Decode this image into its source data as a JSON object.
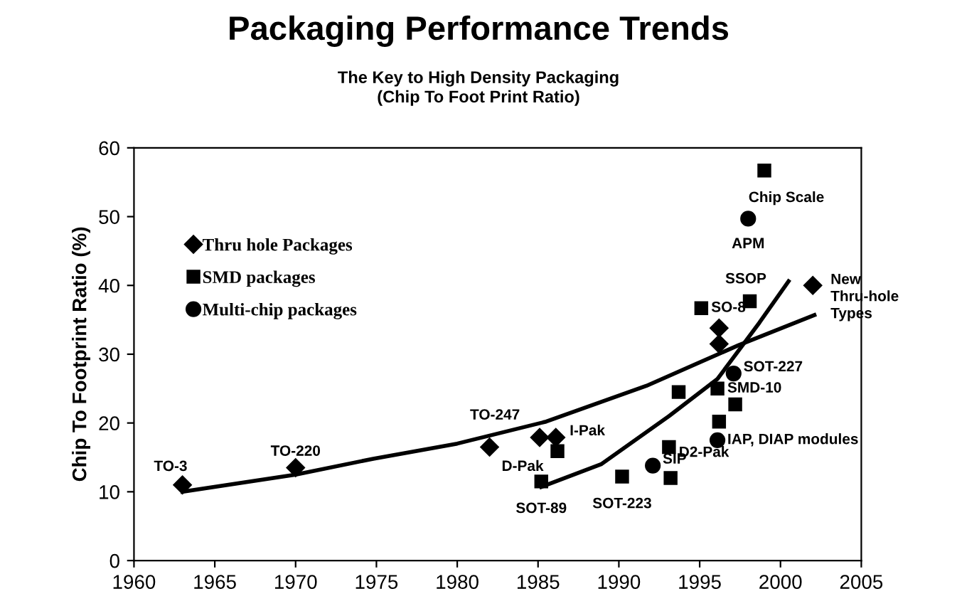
{
  "chart_data": {
    "type": "scatter",
    "title": "Packaging Performance Trends",
    "subtitle": "The Key to High Density Packaging\n(Chip To Foot Print Ratio)",
    "ylabel": "Chip To Footprint Ratio (%)",
    "series": [
      {
        "name": "Thru hole Packages",
        "marker": "diamond",
        "color": "#000000",
        "x": [
          1963,
          1970,
          1982,
          1985.1,
          1986.1,
          1996.2,
          1996.2,
          2002
        ],
        "values": [
          11,
          13.5,
          16.5,
          17.9,
          17.9,
          33.8,
          31.5,
          40
        ]
      },
      {
        "name": "SMD packages",
        "marker": "square",
        "color": "#000000",
        "x": [
          1999,
          1998.1,
          1995.1,
          1993.7,
          1996.1,
          1997.2,
          1996.2,
          1986.2,
          1985.2,
          1990.2,
          1993.1,
          1993.2
        ],
        "values": [
          56.7,
          37.7,
          36.7,
          24.5,
          25,
          22.7,
          20.2,
          15.9,
          11.5,
          12.2,
          16.5,
          12
        ]
      },
      {
        "name": "Multi-chip packages",
        "marker": "circle",
        "color": "#000000",
        "x": [
          1998,
          1997.1,
          1996.1,
          1992.1
        ],
        "values": [
          49.7,
          27.2,
          17.5,
          13.8
        ]
      },
      {
        "type": "line",
        "color": "#000000",
        "x": [
          1963,
          1970,
          1974.8,
          1980,
          1985.5,
          1991.7,
          1997.4,
          2002.1
        ],
        "values": [
          10,
          12.5,
          14.8,
          17,
          20.2,
          25.4,
          31.3,
          35.7
        ]
      },
      {
        "type": "line",
        "color": "#000000",
        "x": [
          1985.2,
          1988.9,
          1993.1,
          1996.1,
          1998.7,
          2000.5
        ],
        "values": [
          10.7,
          14,
          21,
          26.4,
          34.6,
          40.6
        ]
      }
    ],
    "annotations": [
      {
        "text": "TO-3",
        "x": 1963,
        "y": 11
      },
      {
        "text": "TO-220",
        "x": 1970,
        "y": 13.5
      },
      {
        "text": "TO-247",
        "x": 1985.1,
        "y": 17.9
      },
      {
        "text": "I-Pak",
        "x": 1986.1,
        "y": 17.9
      },
      {
        "text": "D-Pak",
        "x": 1986.2,
        "y": 15.9
      },
      {
        "text": "SOT-89",
        "x": 1985.2,
        "y": 11.5
      },
      {
        "text": "SOT-223",
        "x": 1990.2,
        "y": 12.2
      },
      {
        "text": "D2-Pak",
        "x": 1993.1,
        "y": 16.5
      },
      {
        "text": "SIP",
        "x": 1992.1,
        "y": 13.8
      },
      {
        "text": "SOT-227",
        "x": 1997.1,
        "y": 27.2
      },
      {
        "text": "SMD-10",
        "x": 1996.1,
        "y": 25
      },
      {
        "text": "IAP, DIAP modules",
        "x": 1996.1,
        "y": 17.5
      },
      {
        "text": "SO-8",
        "x": 1995.1,
        "y": 36.7
      },
      {
        "text": "SSOP",
        "x": 1998.1,
        "y": 37.7
      },
      {
        "text": "APM",
        "x": 1998,
        "y": 49.7
      },
      {
        "text": "Chip Scale",
        "x": 1999,
        "y": 56.7
      },
      {
        "text": "New\nThru-hole\nTypes",
        "x": 2002,
        "y": 40
      }
    ],
    "xlim": [
      1960,
      2005
    ],
    "xticks": [
      1960,
      1965,
      1970,
      1975,
      1980,
      1985,
      1990,
      1995,
      2000,
      2005
    ],
    "ylim": [
      0,
      60
    ],
    "yticks": [
      0,
      10,
      20,
      30,
      40,
      50,
      60
    ],
    "grid": false,
    "legend": "top left"
  }
}
